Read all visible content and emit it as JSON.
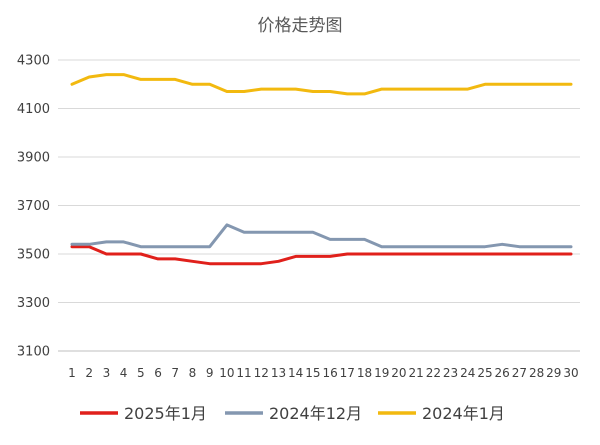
{
  "chart_data": {
    "type": "line",
    "title": "价格走势图",
    "xlabel": "",
    "ylabel": "",
    "x": [
      "1",
      "2",
      "3",
      "4",
      "5",
      "6",
      "7",
      "8",
      "9",
      "10",
      "11",
      "12",
      "13",
      "14",
      "15",
      "16",
      "17",
      "18",
      "19",
      "20",
      "21",
      "22",
      "23",
      "24",
      "25",
      "26",
      "27",
      "28",
      "29",
      "30"
    ],
    "yticks": [
      3100,
      3300,
      3500,
      3700,
      3900,
      4100,
      4300
    ],
    "ylim": [
      3100,
      4300
    ],
    "grid": true,
    "legend": "bottom",
    "series": [
      {
        "name": "2025年1月",
        "color": "#e0201b",
        "values": [
          3530,
          3530,
          3500,
          3500,
          3500,
          3480,
          3480,
          3470,
          3460,
          3460,
          3460,
          3460,
          3470,
          3490,
          3490,
          3490,
          3500,
          3500,
          3500,
          3500,
          3500,
          3500,
          3500,
          3500,
          3500,
          3500,
          3500,
          3500,
          3500,
          3500
        ]
      },
      {
        "name": "2024年12月",
        "color": "#8497b0",
        "values": [
          3540,
          3540,
          3550,
          3550,
          3530,
          3530,
          3530,
          3530,
          3530,
          3620,
          3590,
          3590,
          3590,
          3590,
          3590,
          3560,
          3560,
          3560,
          3530,
          3530,
          3530,
          3530,
          3530,
          3530,
          3530,
          3540,
          3530,
          3530,
          3530,
          3530
        ]
      },
      {
        "name": "2024年1月",
        "color": "#f2b90f",
        "values": [
          4200,
          4230,
          4240,
          4240,
          4220,
          4220,
          4220,
          4200,
          4200,
          4170,
          4170,
          4180,
          4180,
          4180,
          4170,
          4170,
          4160,
          4160,
          4180,
          4180,
          4180,
          4180,
          4180,
          4180,
          4200,
          4200,
          4200,
          4200,
          4200,
          4200
        ]
      }
    ]
  }
}
